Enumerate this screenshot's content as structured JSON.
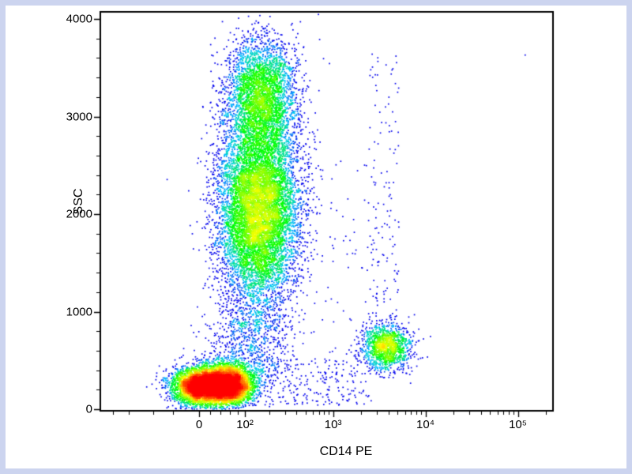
{
  "figure": {
    "background": "#ffffff",
    "frame_color": "#ccd4ef",
    "plot_border_color": "#000000"
  },
  "chart_data": {
    "type": "scatter",
    "subtype": "flow-cytometry-pseudocolor-density-dot-plot",
    "title": "",
    "xlabel": "CD14 PE",
    "ylabel": "SSC",
    "x_scale": "logicle",
    "y_scale": "linear",
    "ylim": [
      0,
      4000
    ],
    "x_ticks": [
      {
        "value": 0,
        "label": "0"
      },
      {
        "value": 100,
        "label": "10²"
      },
      {
        "value": 1000,
        "label": "10³"
      },
      {
        "value": 10000,
        "label": "10⁴"
      },
      {
        "value": 100000,
        "label": "10⁵"
      }
    ],
    "x_minor_ticks": [
      -300,
      -200,
      -100,
      -50,
      20,
      40,
      60,
      80,
      200,
      300,
      400,
      500,
      600,
      700,
      800,
      900,
      2000,
      3000,
      4000,
      5000,
      6000,
      7000,
      8000,
      9000,
      20000,
      30000,
      40000,
      50000,
      60000,
      70000,
      80000,
      90000,
      200000
    ],
    "y_ticks": [
      {
        "value": 0,
        "label": "0"
      },
      {
        "value": 1000,
        "label": "1000"
      },
      {
        "value": 2000,
        "label": "2000"
      },
      {
        "value": 3000,
        "label": "3000"
      },
      {
        "value": 4000,
        "label": "4000"
      }
    ],
    "y_minor_ticks": [
      200,
      400,
      600,
      800,
      1200,
      1400,
      1600,
      1800,
      2200,
      2400,
      2600,
      2800,
      3200,
      3400,
      3600,
      3800
    ],
    "density_colormap": [
      "#0000ee",
      "#00c8ff",
      "#00ff00",
      "#ffff00",
      "#ff0000"
    ],
    "populations": [
      {
        "name": "debris-low-ssc-core-left",
        "type": "gaussian",
        "n": 4500,
        "x_center": 5,
        "x_sigma_t": 0.35,
        "y_center": 235,
        "y_sigma": 95
      },
      {
        "name": "debris-low-ssc-core-right",
        "type": "gaussian",
        "n": 4500,
        "x_center": 55,
        "x_sigma_t": 0.33,
        "y_center": 250,
        "y_sigma": 100
      },
      {
        "name": "granulocytes-main",
        "type": "gaussian",
        "n": 9000,
        "x_center": 150,
        "x_sigma_t": 0.5,
        "y_center": 2050,
        "y_sigma": 460
      },
      {
        "name": "granulocytes-upper",
        "type": "gaussian",
        "n": 3500,
        "x_center": 160,
        "x_sigma_t": 0.45,
        "y_center": 3200,
        "y_sigma": 300
      },
      {
        "name": "monocytes-cd14-positive",
        "type": "gaussian",
        "n": 1400,
        "x_center": 3800,
        "x_sigma_t": 0.3,
        "y_center": 640,
        "y_sigma": 120
      },
      {
        "name": "debris-granulocyte-bridge",
        "type": "gaussian",
        "n": 900,
        "x_center": 120,
        "x_sigma_t": 0.5,
        "y_center": 750,
        "y_sigma": 300
      },
      {
        "name": "low-ssc-scatter",
        "type": "uniform",
        "n": 260,
        "x_range": [
          120,
          2600
        ],
        "y_range": [
          40,
          520
        ]
      },
      {
        "name": "mid-scatter",
        "type": "uniform",
        "n": 60,
        "x_range": [
          700,
          3200
        ],
        "y_range": [
          400,
          2600
        ]
      },
      {
        "name": "monocyte-column-scatter",
        "type": "uniform",
        "n": 130,
        "x_range": [
          2400,
          5200
        ],
        "y_range": [
          900,
          3650
        ]
      }
    ],
    "outliers": [
      [
        120000,
        3630
      ]
    ]
  }
}
